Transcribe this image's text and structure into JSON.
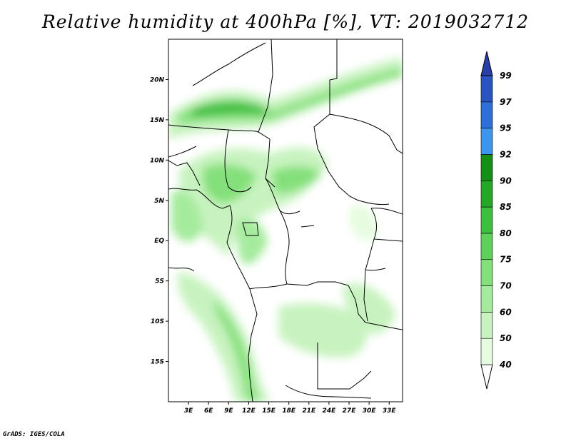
{
  "title": "Relative humidity at 400hPa [%], VT: 2019032712",
  "credit": "GrADS: IGES/COLA",
  "map": {
    "lon_range": [
      0,
      35
    ],
    "lat_range": [
      -20,
      25
    ],
    "lat_labels": [
      {
        "lat": 20,
        "label": "20N"
      },
      {
        "lat": 15,
        "label": "15N"
      },
      {
        "lat": 10,
        "label": "10N"
      },
      {
        "lat": 5,
        "label": "5N"
      },
      {
        "lat": 0,
        "label": "EQ"
      },
      {
        "lat": -5,
        "label": "5S"
      },
      {
        "lat": -10,
        "label": "10S"
      },
      {
        "lat": -15,
        "label": "15S"
      }
    ],
    "lon_labels": [
      {
        "lon": 3,
        "label": "3E"
      },
      {
        "lon": 6,
        "label": "6E"
      },
      {
        "lon": 9,
        "label": "9E"
      },
      {
        "lon": 12,
        "label": "12E"
      },
      {
        "lon": 15,
        "label": "15E"
      },
      {
        "lon": 18,
        "label": "18E"
      },
      {
        "lon": 21,
        "label": "21E"
      },
      {
        "lon": 24,
        "label": "24E"
      },
      {
        "lon": 27,
        "label": "27E"
      },
      {
        "lon": 30,
        "label": "30E"
      },
      {
        "lon": 33,
        "label": "33E"
      }
    ]
  },
  "colorbar": {
    "levels": [
      40,
      50,
      60,
      70,
      75,
      80,
      85,
      90,
      92,
      95,
      97,
      99
    ],
    "colors": [
      "#ffffff",
      "#e6fce0",
      "#c8f3c0",
      "#a5eb9d",
      "#84e07a",
      "#5fd05a",
      "#3fbf3f",
      "#26a826",
      "#158f15",
      "#3d96ec",
      "#2f6fd8",
      "#2a55c0",
      "#2a3fa8"
    ],
    "labels": [
      "40",
      "50",
      "60",
      "70",
      "75",
      "80",
      "85",
      "90",
      "92",
      "95",
      "97",
      "99"
    ]
  }
}
